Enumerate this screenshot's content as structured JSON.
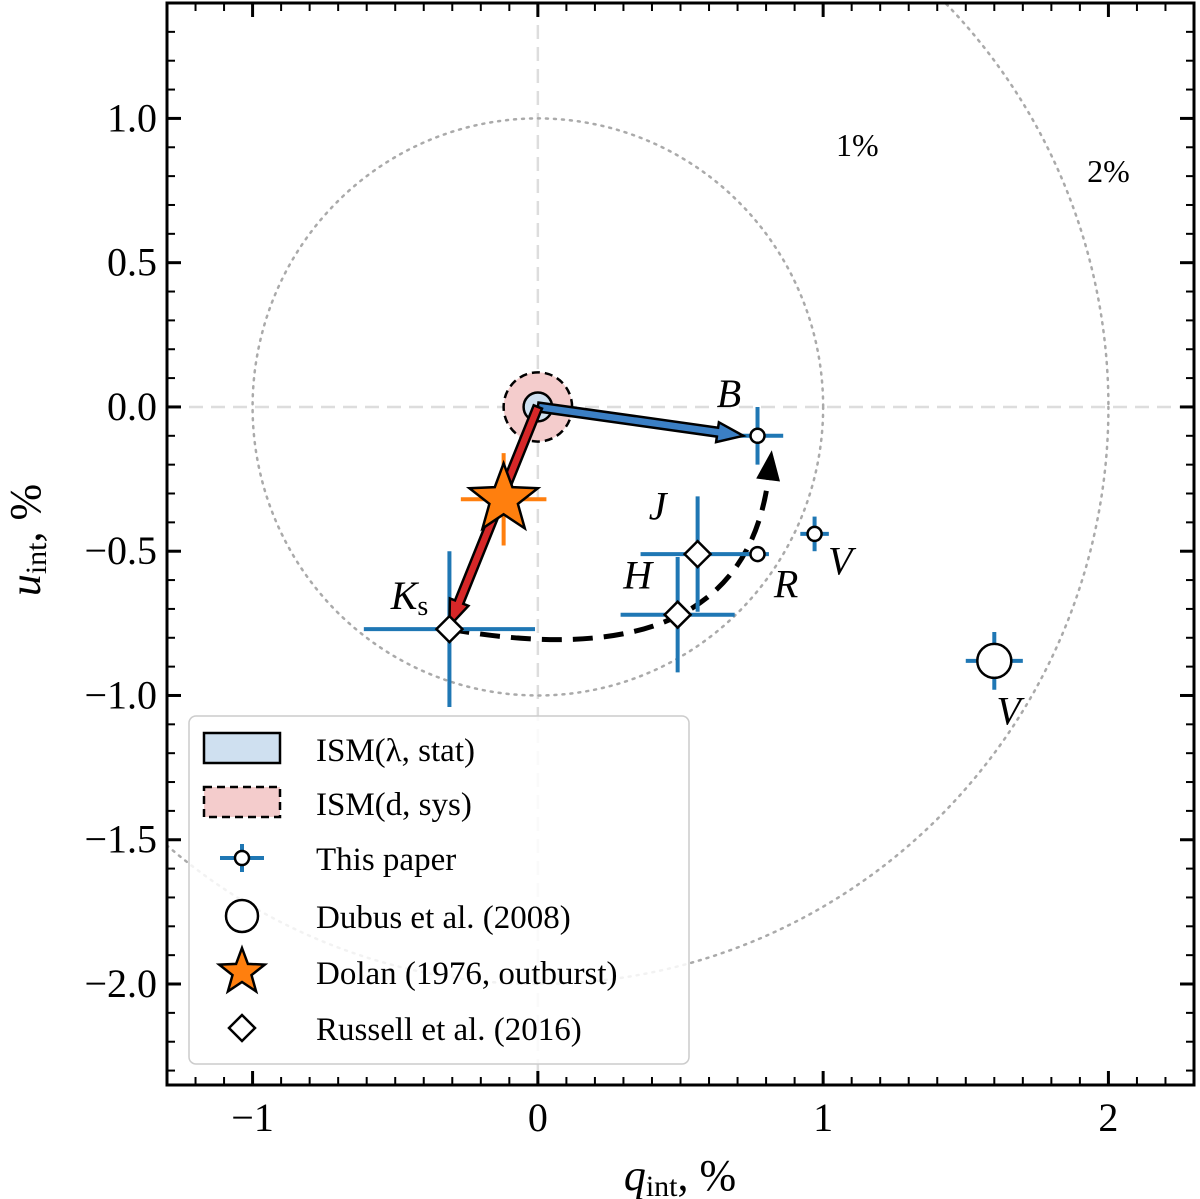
{
  "chart_data": {
    "type": "scatter",
    "xlabel": {
      "main": "q",
      "sub": "int",
      "unit": ", %"
    },
    "ylabel": {
      "main": "u",
      "sub": "int",
      "unit": ", %"
    },
    "xlim": [
      -1.3,
      2.3
    ],
    "ylim": [
      -2.35,
      1.4
    ],
    "x_ticks": [
      -1,
      0,
      1,
      2
    ],
    "x_tick_labels": [
      "−1",
      "0",
      "1",
      "2"
    ],
    "y_ticks": [
      1.0,
      0.5,
      0.0,
      -0.5,
      -1.0,
      -1.5,
      -2.0
    ],
    "y_tick_labels": [
      "1.0",
      "0.5",
      "0.0",
      "−0.5",
      "−1.0",
      "−1.5",
      "−2.0"
    ],
    "reference_circles": [
      {
        "radius": 1,
        "label": "1%",
        "label_at": [
          1.12,
          0.87
        ]
      },
      {
        "radius": 2,
        "label": "2%",
        "label_at": [
          2.0,
          0.78
        ]
      }
    ],
    "ism": {
      "center": [
        0,
        0
      ],
      "stat_radius": 0.05,
      "sys_radius": 0.12,
      "vector_B": [
        0.72,
        -0.1
      ],
      "vector_Ks": [
        -0.31,
        -0.76
      ]
    },
    "curved_arrow": {
      "from": [
        -0.31,
        -0.77
      ],
      "control": [
        0.72,
        -0.95
      ],
      "to": [
        0.82,
        -0.15
      ]
    },
    "series": [
      {
        "name": "This paper",
        "marker": "small-circle",
        "color": "#1f77b4",
        "points": [
          {
            "band": "B",
            "x": 0.77,
            "y": -0.1,
            "xerr": 0.09,
            "yerr": 0.1,
            "label_at": [
              0.67,
              0.0
            ]
          },
          {
            "band": "V",
            "x": 0.97,
            "y": -0.44,
            "xerr": 0.05,
            "yerr": 0.06,
            "label_at": [
              1.06,
              -0.58
            ]
          },
          {
            "band": "R",
            "x": 0.77,
            "y": -0.51,
            "xerr": 0.04,
            "yerr": 0.02,
            "label_at": [
              0.87,
              -0.66
            ]
          }
        ]
      },
      {
        "name": "Dubus et al. (2008)",
        "marker": "large-circle",
        "color": "#1f77b4",
        "points": [
          {
            "band": "V",
            "x": 1.6,
            "y": -0.88,
            "xerr": 0.1,
            "yerr": 0.1,
            "label_at": [
              1.65,
              -1.1
            ]
          }
        ]
      },
      {
        "name": "Dolan (1976, outburst)",
        "marker": "star",
        "color": "#ff7f0e",
        "points": [
          {
            "band": "",
            "x": -0.12,
            "y": -0.32,
            "xerr": 0.15,
            "yerr": 0.16
          }
        ]
      },
      {
        "name": "Russell et al. (2016)",
        "marker": "diamond",
        "color": "#1f77b4",
        "points": [
          {
            "band": "J",
            "x": 0.56,
            "y": -0.51,
            "xerr": 0.2,
            "yerr": 0.2,
            "label_at": [
              0.42,
              -0.39
            ]
          },
          {
            "band": "H",
            "x": 0.49,
            "y": -0.72,
            "xerr": 0.2,
            "yerr": 0.2,
            "label_at": [
              0.35,
              -0.63
            ]
          },
          {
            "band": "K",
            "band_sub": "s",
            "x": -0.31,
            "y": -0.77,
            "xerr": 0.3,
            "yerr": 0.27,
            "label_at": [
              -0.45,
              -0.7
            ]
          }
        ]
      }
    ],
    "legend": {
      "position": "lower-left",
      "entries": [
        {
          "text": "ISM(λ, stat)",
          "symbol": "blue-patch"
        },
        {
          "text": "ISM(d, sys)",
          "symbol": "red-dashed-patch"
        },
        {
          "text": "This paper",
          "symbol": "small-circle"
        },
        {
          "text": "Dubus et al. (2008)",
          "symbol": "large-circle"
        },
        {
          "text": "Dolan (1976, outburst)",
          "symbol": "star"
        },
        {
          "text": "Russell et al. (2016)",
          "symbol": "diamond"
        }
      ]
    },
    "colors": {
      "errorbar_blue": "#1f77b4",
      "errorbar_orange": "#ff7f0e",
      "star_fill": "#ff7f0e",
      "ism_stat": "#cfe0f0",
      "ism_sys": "#f4cccc",
      "vector_blue": "#3b7fc4",
      "vector_red": "#d62728",
      "reference_circle": "#aaaaaa",
      "zero_line": "#dddddd"
    }
  }
}
